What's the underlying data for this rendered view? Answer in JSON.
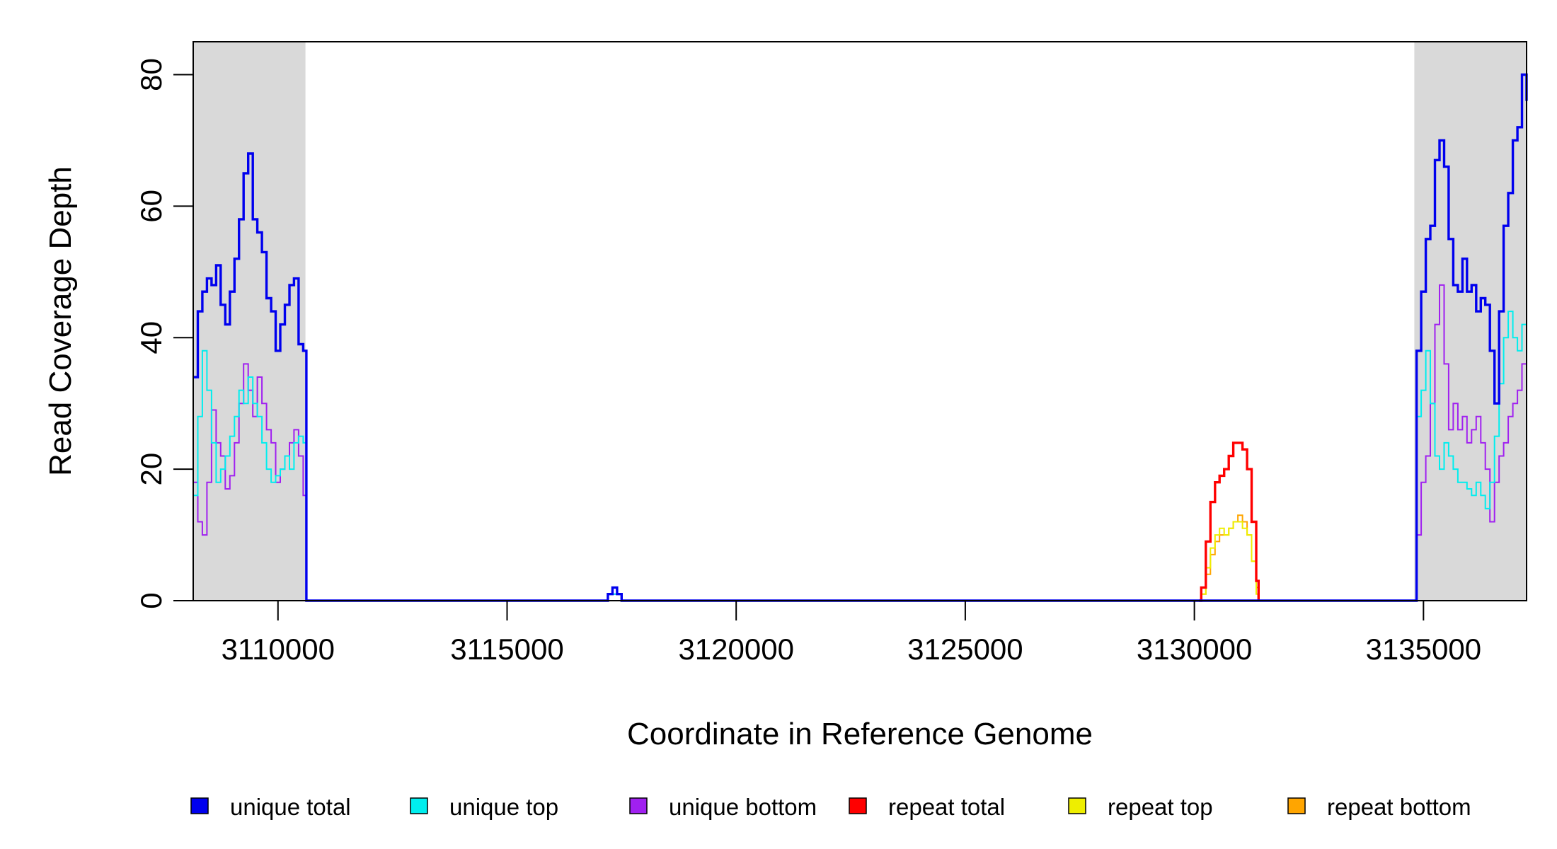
{
  "chart_data": {
    "type": "line",
    "title": "",
    "xlabel": "Coordinate in Reference Genome",
    "ylabel": "Read Coverage Depth",
    "xlim": [
      3108150,
      3137250
    ],
    "ylim": [
      0,
      85
    ],
    "x_ticks": [
      3110000,
      3115000,
      3120000,
      3125000,
      3130000,
      3135000
    ],
    "x_tick_labels": [
      "3110000",
      "3115000",
      "3120000",
      "3125000",
      "3130000",
      "3135000"
    ],
    "y_ticks": [
      0,
      20,
      40,
      60,
      80
    ],
    "y_tick_labels": [
      "0",
      "20",
      "40",
      "60",
      "80"
    ],
    "grid": false,
    "legend_position": "bottom",
    "shaded_regions": [
      {
        "x_start": 3108150,
        "x_end": 3110600,
        "color": "#d9d9d9"
      },
      {
        "x_start": 3134800,
        "x_end": 3137250,
        "color": "#d9d9d9"
      }
    ],
    "series": [
      {
        "name": "unique total",
        "color": "#0000ee",
        "x": [
          3108150,
          3108250,
          3108350,
          3108450,
          3108550,
          3108650,
          3108750,
          3108850,
          3108950,
          3109050,
          3109150,
          3109250,
          3109350,
          3109450,
          3109550,
          3109650,
          3109750,
          3109850,
          3109950,
          3110050,
          3110150,
          3110250,
          3110350,
          3110450,
          3110550,
          3110620,
          3110650,
          3117200,
          3117300,
          3117400,
          3117500,
          3117600,
          3134800,
          3134850,
          3134950,
          3135050,
          3135150,
          3135250,
          3135350,
          3135450,
          3135550,
          3135650,
          3135750,
          3135850,
          3135950,
          3136050,
          3136150,
          3136250,
          3136350,
          3136450,
          3136550,
          3136650,
          3136750,
          3136850,
          3136950,
          3137050,
          3137150,
          3137250
        ],
        "y": [
          34,
          44,
          47,
          49,
          48,
          51,
          45,
          42,
          47,
          52,
          58,
          65,
          68,
          58,
          56,
          53,
          46,
          44,
          38,
          42,
          45,
          48,
          49,
          39,
          38,
          0,
          0,
          1,
          2,
          1,
          0,
          0,
          0,
          38,
          47,
          55,
          57,
          67,
          70,
          66,
          55,
          48,
          47,
          52,
          47,
          48,
          44,
          46,
          45,
          38,
          30,
          44,
          57,
          62,
          70,
          72,
          80,
          76
        ]
      },
      {
        "name": "unique top",
        "color": "#00eeee",
        "x": [
          3108150,
          3108250,
          3108350,
          3108450,
          3108550,
          3108650,
          3108750,
          3108850,
          3108950,
          3109050,
          3109150,
          3109250,
          3109350,
          3109450,
          3109550,
          3109650,
          3109750,
          3109850,
          3109950,
          3110050,
          3110150,
          3110250,
          3110350,
          3110450,
          3110550,
          3110620,
          3110650,
          3117200,
          3117300,
          3117400,
          3117500,
          3117600,
          3134800,
          3134850,
          3134950,
          3135050,
          3135150,
          3135250,
          3135350,
          3135450,
          3135550,
          3135650,
          3135750,
          3135850,
          3135950,
          3136050,
          3136150,
          3136250,
          3136350,
          3136450,
          3136550,
          3136650,
          3136750,
          3136850,
          3136950,
          3137050,
          3137150,
          3137250
        ],
        "y": [
          16,
          28,
          38,
          32,
          24,
          18,
          20,
          22,
          25,
          28,
          32,
          30,
          34,
          30,
          28,
          24,
          20,
          18,
          19,
          20,
          22,
          20,
          24,
          25,
          24,
          0,
          0,
          1,
          1,
          1,
          0,
          0,
          0,
          28,
          32,
          38,
          30,
          22,
          20,
          24,
          22,
          20,
          18,
          18,
          17,
          16,
          18,
          16,
          14,
          18,
          25,
          33,
          40,
          44,
          40,
          38,
          42,
          40
        ]
      },
      {
        "name": "unique bottom",
        "color": "#a020f0",
        "x": [
          3108150,
          3108250,
          3108350,
          3108450,
          3108550,
          3108650,
          3108750,
          3108850,
          3108950,
          3109050,
          3109150,
          3109250,
          3109350,
          3109450,
          3109550,
          3109650,
          3109750,
          3109850,
          3109950,
          3110050,
          3110150,
          3110250,
          3110350,
          3110450,
          3110550,
          3110620,
          3110650,
          3117200,
          3117300,
          3117400,
          3117500,
          3117600,
          3134800,
          3134850,
          3134950,
          3135050,
          3135150,
          3135250,
          3135350,
          3135450,
          3135550,
          3135650,
          3135750,
          3135850,
          3135950,
          3136050,
          3136150,
          3136250,
          3136350,
          3136450,
          3136550,
          3136650,
          3136750,
          3136850,
          3136950,
          3137050,
          3137150,
          3137250
        ],
        "y": [
          18,
          12,
          10,
          18,
          29,
          24,
          22,
          17,
          19,
          24,
          30,
          36,
          32,
          28,
          34,
          30,
          26,
          24,
          18,
          20,
          22,
          24,
          26,
          22,
          16,
          0,
          0,
          1,
          1,
          1,
          0,
          0,
          0,
          10,
          18,
          22,
          30,
          42,
          48,
          36,
          26,
          30,
          26,
          28,
          24,
          26,
          28,
          24,
          20,
          12,
          18,
          22,
          24,
          28,
          30,
          32,
          36,
          34
        ]
      },
      {
        "name": "repeat total",
        "color": "#ff0000",
        "x": [
          3130100,
          3130150,
          3130250,
          3130350,
          3130450,
          3130550,
          3130650,
          3130750,
          3130850,
          3130950,
          3131050,
          3131150,
          3131250,
          3131350,
          3131400
        ],
        "y": [
          0,
          2,
          9,
          15,
          18,
          19,
          20,
          22,
          24,
          24,
          23,
          20,
          12,
          3,
          0
        ]
      },
      {
        "name": "repeat top",
        "color": "#eeee00",
        "x": [
          3130100,
          3130150,
          3130250,
          3130350,
          3130450,
          3130550,
          3130650,
          3130750,
          3130850,
          3130950,
          3131050,
          3131150,
          3131250,
          3131350,
          3131400
        ],
        "y": [
          0,
          1,
          5,
          8,
          10,
          11,
          10,
          11,
          12,
          12,
          11,
          10,
          6,
          1,
          0
        ]
      },
      {
        "name": "repeat bottom",
        "color": "#ffa500",
        "x": [
          3108150,
          3130100,
          3130150,
          3130250,
          3130350,
          3130450,
          3130550,
          3130650,
          3130750,
          3130850,
          3130950,
          3131050,
          3131150,
          3131250,
          3131350,
          3131400,
          3137250
        ],
        "y": [
          0,
          0,
          1,
          4,
          7,
          9,
          10,
          10,
          11,
          12,
          13,
          12,
          10,
          6,
          2,
          0,
          0
        ]
      }
    ]
  }
}
